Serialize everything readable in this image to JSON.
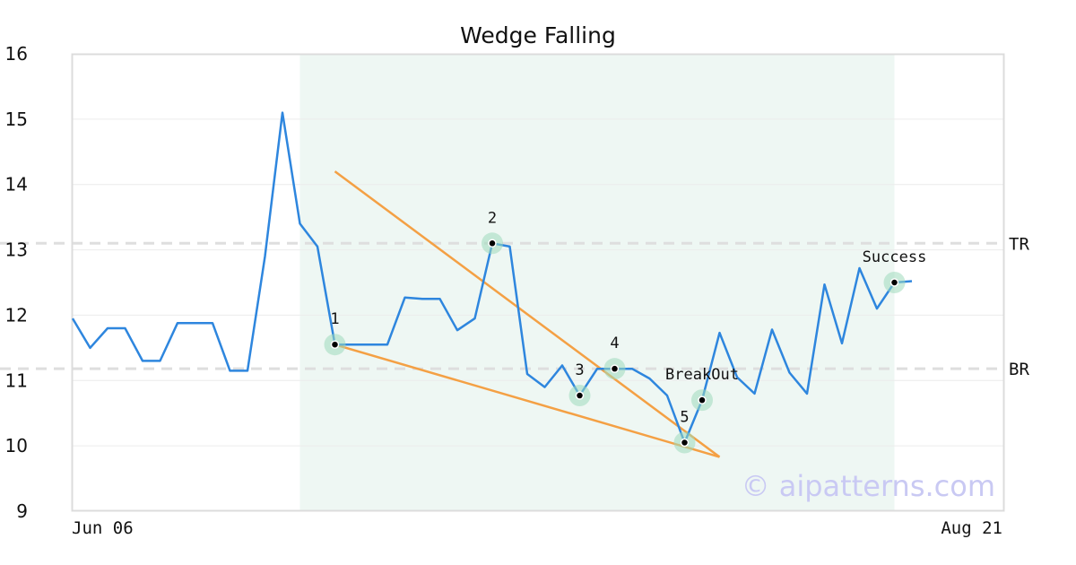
{
  "chart_data": {
    "type": "line",
    "title": "Wedge Falling",
    "ylim": [
      9,
      16
    ],
    "yticks": [
      "9",
      "10",
      "11",
      "12",
      "13",
      "14",
      "15",
      "16"
    ],
    "xtick_labels": {
      "first": "Jun 06",
      "last": "Aug 21"
    },
    "grid": "horizontal",
    "series": [
      {
        "color": "#2e86de",
        "values": [
          11.95,
          11.5,
          11.8,
          11.8,
          11.3,
          11.3,
          11.88,
          11.88,
          11.88,
          11.15,
          11.15,
          12.9,
          15.1,
          13.4,
          13.05,
          11.55,
          11.55,
          11.55,
          11.55,
          12.27,
          12.25,
          12.25,
          11.77,
          11.95,
          13.1,
          13.05,
          11.1,
          10.9,
          11.23,
          10.77,
          11.18,
          11.18,
          11.18,
          11.03,
          10.77,
          10.05,
          10.7,
          11.73,
          11.05,
          10.8,
          11.78,
          11.12,
          10.8,
          12.47,
          11.57,
          12.72,
          12.1,
          12.5,
          12.52
        ]
      }
    ],
    "shaded_region": {
      "from_index": 13,
      "to_index": 47,
      "color": "#eef7f3"
    },
    "levels": [
      {
        "label": "TR",
        "value": 13.1
      },
      {
        "label": "BR",
        "value": 11.18
      }
    ],
    "trendlines": [
      {
        "color": "#f4a044",
        "from": [
          15,
          14.2
        ],
        "to": [
          37,
          9.83
        ]
      },
      {
        "color": "#f4a044",
        "from": [
          15,
          11.55
        ],
        "to": [
          37,
          9.83
        ]
      }
    ],
    "points": [
      {
        "label": "1",
        "index": 15,
        "value": 11.55
      },
      {
        "label": "2",
        "index": 24,
        "value": 13.1
      },
      {
        "label": "3",
        "index": 29,
        "value": 10.77
      },
      {
        "label": "4",
        "index": 31,
        "value": 11.18
      },
      {
        "label": "5",
        "index": 35,
        "value": 10.05
      },
      {
        "label": "BreakOut",
        "index": 36,
        "value": 10.7
      },
      {
        "label": "Success",
        "index": 47,
        "value": 12.5
      }
    ],
    "watermark": "© aipatterns.com"
  }
}
